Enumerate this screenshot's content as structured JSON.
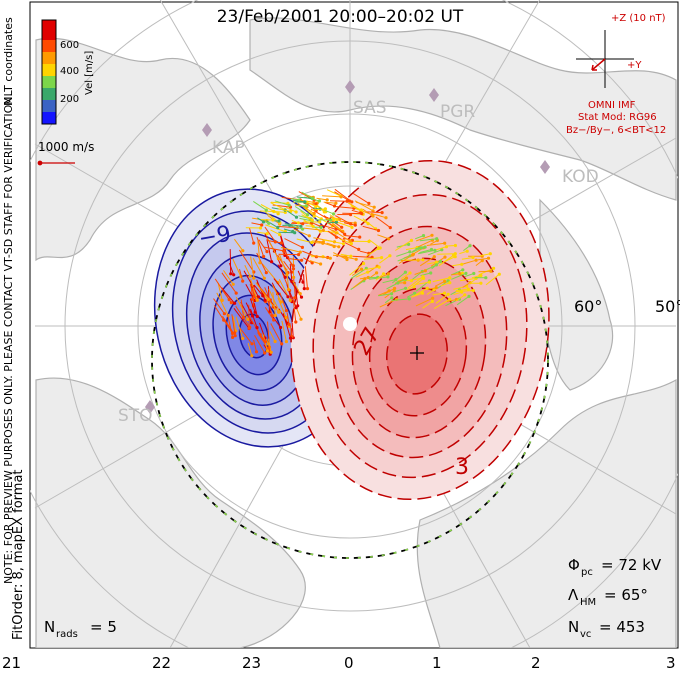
{
  "title": "23/Feb/2001 20:00–20:02 UT",
  "coordinates_label": "MLT coordinates",
  "colorbar": {
    "axis_label": "Vel [m/s]",
    "ticks": [
      "600",
      "400",
      "200"
    ],
    "colors": [
      "#1414ff",
      "#3b63c4",
      "#3aa86a",
      "#7cd64a",
      "#ffd400",
      "#ff9a00",
      "#ff4a00",
      "#e00000"
    ]
  },
  "velocity_scale_label": "1000 m/s",
  "imf": {
    "scale_label": "+Z (10 nT)",
    "y_label": "+Y",
    "source": "OMNI IMF",
    "stat_mod": "Stat Mod: RG96",
    "condition": "Bz−/By−, 6<BT<12"
  },
  "stations": [
    "SAS",
    "PGR",
    "KAP",
    "KOD",
    "STO"
  ],
  "latitude_labels": [
    "60°",
    "50°"
  ],
  "contour_labels": {
    "negative": "−9",
    "positive_1": "27",
    "positive_2": "3"
  },
  "vertical_note": "NOTE: FOR PREVIEW PURPOSES ONLY. PLEASE CONTACT VT-SD STAFF FOR VERIFICATION.",
  "fit_note": "FitOrder: 8, mapEX format",
  "stats": {
    "phi_label": "Φ",
    "phi_sub": "pc",
    "phi_value": "= 72 kV",
    "lambda_label": "Λ",
    "lambda_sub": "HM",
    "lambda_value": "= 65°",
    "nvc_label": "N",
    "nvc_sub": "vc",
    "nvc_value": "= 453",
    "nrads_label": "N",
    "nrads_sub": "rads",
    "nrads_value": "= 5"
  },
  "mlt_labels": [
    "21",
    "22",
    "23",
    "0",
    "1",
    "2",
    "3"
  ],
  "colors": {
    "negative_cell": "#1a1aa0",
    "positive_cell": "#c00000",
    "boundary": "#000000"
  }
}
